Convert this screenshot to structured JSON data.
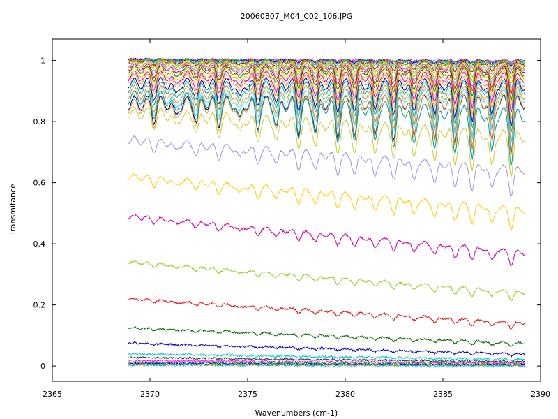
{
  "chart_data": {
    "type": "line",
    "title": "20060807_M04_C02_106.JPG",
    "xlabel": "Wavenumbers (cm-1)",
    "ylabel": "Transmitance",
    "xlim": [
      2365,
      2390
    ],
    "ylim": [
      -0.05,
      1.07
    ],
    "xticks": [
      {
        "value": 2365,
        "label": "2365"
      },
      {
        "value": 2370,
        "label": "2370"
      },
      {
        "value": 2375,
        "label": "2375"
      },
      {
        "value": 2380,
        "label": "2380"
      },
      {
        "value": 2385,
        "label": "2385"
      },
      {
        "value": 2390,
        "label": "2390"
      }
    ],
    "yticks": [
      {
        "value": 0,
        "label": "0"
      },
      {
        "value": 0.2,
        "label": "0.2"
      },
      {
        "value": 0.4,
        "label": "0.4"
      },
      {
        "value": 0.6,
        "label": "0.6"
      },
      {
        "value": 0.8,
        "label": "0.8"
      },
      {
        "value": 1,
        "label": "1"
      }
    ],
    "grid": false,
    "legend": "none",
    "x_range": [
      2368.9,
      2389.2
    ],
    "line_positions": [
      2370.2,
      2371.3,
      2372.4,
      2373.5,
      2374.6,
      2375.5,
      2376.5,
      2377.6,
      2378.5,
      2379.6,
      2380.5,
      2381.5,
      2382.5,
      2383.5,
      2384.6,
      2385.6,
      2386.5,
      2387.5,
      2388.5
    ],
    "series": [
      {
        "color": "#ff00ff",
        "start": 1.005,
        "end": 1.0,
        "max_depth": 0.005
      },
      {
        "color": "#00cc00",
        "start": 1.004,
        "end": 0.999,
        "max_depth": 0.008
      },
      {
        "color": "#0000ff",
        "start": 1.003,
        "end": 0.998,
        "max_depth": 0.012
      },
      {
        "color": "#ff8800",
        "start": 1.002,
        "end": 0.996,
        "max_depth": 0.016
      },
      {
        "color": "#00cccc",
        "start": 1.0,
        "end": 0.994,
        "max_depth": 0.022
      },
      {
        "color": "#cc0000",
        "start": 0.998,
        "end": 0.99,
        "max_depth": 0.03
      },
      {
        "color": "#88cc00",
        "start": 0.996,
        "end": 0.986,
        "max_depth": 0.04
      },
      {
        "color": "#ccaa00",
        "start": 0.99,
        "end": 0.98,
        "max_depth": 0.05
      },
      {
        "color": "#8888ff",
        "start": 0.985,
        "end": 0.975,
        "max_depth": 0.06
      },
      {
        "color": "#ff0000",
        "start": 0.978,
        "end": 0.97,
        "max_depth": 0.07
      },
      {
        "color": "#008800",
        "start": 0.97,
        "end": 0.962,
        "max_depth": 0.08
      },
      {
        "color": "#ffcc00",
        "start": 0.96,
        "end": 0.955,
        "max_depth": 0.09
      },
      {
        "color": "#cc00cc",
        "start": 0.95,
        "end": 0.945,
        "max_depth": 0.1
      },
      {
        "color": "#ff9900",
        "start": 0.94,
        "end": 0.932,
        "max_depth": 0.11
      },
      {
        "color": "#0000aa",
        "start": 0.925,
        "end": 0.92,
        "max_depth": 0.12
      },
      {
        "color": "#00aaaa",
        "start": 0.912,
        "end": 0.91,
        "max_depth": 0.13
      },
      {
        "color": "#ff8800",
        "start": 0.895,
        "end": 0.895,
        "max_depth": 0.14
      },
      {
        "color": "#44ddff",
        "start": 0.88,
        "end": 0.885,
        "max_depth": 0.14
      },
      {
        "color": "#000080",
        "start": 0.86,
        "end": 0.865,
        "max_depth": 0.15
      },
      {
        "color": "#ee9922",
        "start": 0.85,
        "end": 0.87,
        "max_depth": 0.16
      },
      {
        "color": "#009999",
        "start": 0.88,
        "end": 0.82,
        "max_depth": 0.15
      },
      {
        "color": "#cccc33",
        "start": 0.83,
        "end": 0.75,
        "max_depth": 0.12
      },
      {
        "color": "#9999dd",
        "start": 0.74,
        "end": 0.64,
        "max_depth": 0.08
      },
      {
        "color": "#ffcc00",
        "start": 0.62,
        "end": 0.51,
        "max_depth": 0.06
      },
      {
        "color": "#cc0099",
        "start": 0.49,
        "end": 0.37,
        "max_depth": 0.04
      },
      {
        "color": "#99cc22",
        "start": 0.34,
        "end": 0.24,
        "max_depth": 0.025
      },
      {
        "color": "#dd1111",
        "start": 0.22,
        "end": 0.14,
        "max_depth": 0.018
      },
      {
        "color": "#006600",
        "start": 0.125,
        "end": 0.075,
        "max_depth": 0.012
      },
      {
        "color": "#0000bb",
        "start": 0.075,
        "end": 0.04,
        "max_depth": 0.008
      },
      {
        "color": "#00cccc",
        "start": 0.04,
        "end": 0.022,
        "max_depth": 0.005
      },
      {
        "color": "#333333",
        "start": 0.028,
        "end": 0.015,
        "max_depth": 0.003
      },
      {
        "color": "#ff00ff",
        "start": 0.018,
        "end": 0.01,
        "max_depth": 0.002
      },
      {
        "color": "#00aa00",
        "start": 0.012,
        "end": 0.006,
        "max_depth": 0.002
      },
      {
        "color": "#0000ff",
        "start": 0.008,
        "end": 0.004,
        "max_depth": 0.001
      },
      {
        "color": "#ff8800",
        "start": 0.005,
        "end": 0.003,
        "max_depth": 0.001
      },
      {
        "color": "#00cccc",
        "start": 0.003,
        "end": 0.001,
        "max_depth": 0.001
      }
    ]
  }
}
